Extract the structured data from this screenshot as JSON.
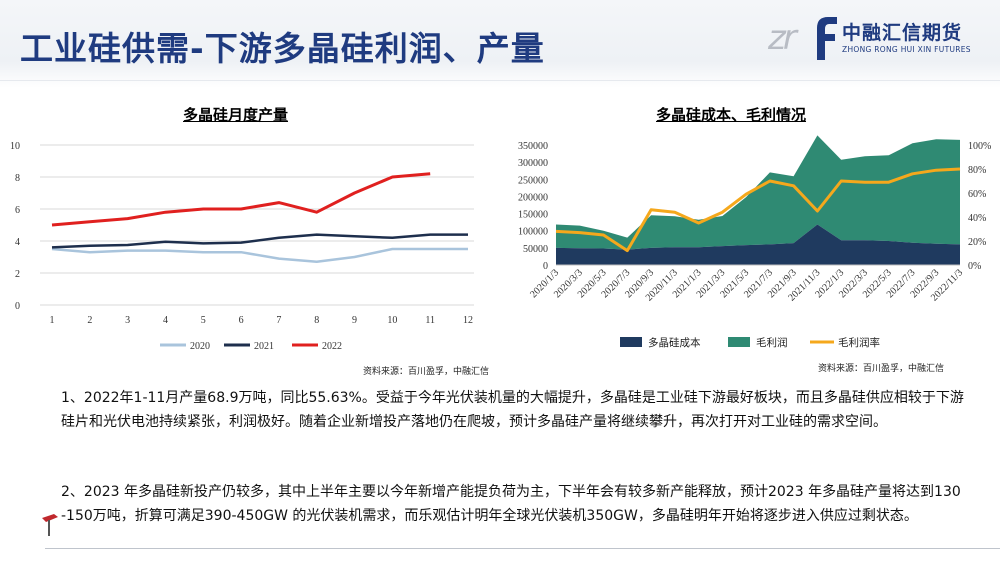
{
  "header": {
    "title": "工业硅供需-下游多晶硅利润、产量",
    "logo_cn": "中融汇信期货",
    "logo_en": "ZHONG RONG HUI XIN FUTURES",
    "logo_mark": "zr",
    "logo_f": "f"
  },
  "left_chart": {
    "source": "资料来源：百川盈孚，中融汇信"
  },
  "right_chart": {
    "source": "资料来源：百川盈孚，中融汇信"
  },
  "paragraphs": {
    "p1": "1、2022年1-11月产量68.9万吨，同比55.63%。受益于今年光伏装机量的大幅提升，多晶硅是工业硅下游最好板块，而且多晶硅供应相较于下游硅片和光伏电池持续紧张，利润极好。随着企业新增投产落地仍在爬坡，预计多晶硅产量将继续攀升，再次打开对工业硅的需求空间。",
    "p2": "2、2023 年多晶硅新投产仍较多，其中上半年主要以今年新增产能提负荷为主，下半年会有较多新产能释放，预计2023 年多晶硅产量将达到130 -150万吨，折算可满足390-450GW 的光伏装机需求，而乐观估计明年全球光伏装机350GW，多晶硅明年开始将逐步进入供应过剩状态。"
  },
  "chart_data": [
    {
      "type": "line",
      "title": "多晶硅月度产量",
      "categories": [
        "1",
        "2",
        "3",
        "4",
        "5",
        "6",
        "7",
        "8",
        "9",
        "10",
        "11",
        "12"
      ],
      "ylim": [
        0,
        10
      ],
      "yticks": [
        "0",
        "2",
        "4",
        "6",
        "8",
        "10"
      ],
      "grid": true,
      "legend": "bottom",
      "series": [
        {
          "name": "2020",
          "color": "#a9c4dc",
          "values": [
            3.5,
            3.3,
            3.4,
            3.4,
            3.3,
            3.3,
            2.9,
            2.7,
            3.0,
            3.5,
            3.5,
            3.5
          ]
        },
        {
          "name": "2021",
          "color": "#1e2f4d",
          "values": [
            3.6,
            3.7,
            3.75,
            3.95,
            3.85,
            3.9,
            4.2,
            4.4,
            4.3,
            4.2,
            4.4,
            4.4
          ]
        },
        {
          "name": "2022",
          "color": "#e0201f",
          "values": [
            5.0,
            5.2,
            5.4,
            5.8,
            6.0,
            6.0,
            6.4,
            5.8,
            7.0,
            8.0,
            8.2,
            null
          ]
        }
      ]
    },
    {
      "type": "area",
      "title": "多晶硅成本、毛利情况",
      "categories": [
        "2020/1/3",
        "2020/3/3",
        "2020/5/3",
        "2020/7/3",
        "2020/9/3",
        "2020/11/3",
        "2021/1/3",
        "2021/3/3",
        "2021/5/3",
        "2021/7/3",
        "2021/9/3",
        "2021/11/3",
        "2022/1/3",
        "2022/3/3",
        "2022/5/3",
        "2022/7/3",
        "2022/9/3",
        "2022/11/3"
      ],
      "ylim": [
        0,
        350000
      ],
      "yticks": [
        "0",
        "50000",
        "100000",
        "150000",
        "200000",
        "250000",
        "300000",
        "350000"
      ],
      "y2lim": [
        0,
        100
      ],
      "y2ticks": [
        "0%",
        "20%",
        "40%",
        "60%",
        "80%",
        "100%"
      ],
      "legend": "bottom",
      "series": [
        {
          "name": "多晶硅成本",
          "kind": "area",
          "color": "#1f3a5f",
          "values": [
            50000,
            49000,
            48000,
            45000,
            50000,
            52000,
            52000,
            55000,
            58000,
            60000,
            64000,
            118000,
            72000,
            72000,
            70000,
            65000,
            62000,
            60000
          ]
        },
        {
          "name": "毛利润",
          "kind": "area",
          "color": "#2f8a73",
          "values": [
            68000,
            66000,
            52000,
            35000,
            95000,
            90000,
            80000,
            88000,
            140000,
            210000,
            195000,
            260000,
            235000,
            245000,
            250000,
            290000,
            305000,
            305000
          ]
        },
        {
          "name": "毛利润率",
          "kind": "line",
          "axis": "right",
          "unit": "%",
          "color": "#f5a81c",
          "values": [
            28,
            27,
            25,
            12,
            46,
            44,
            35,
            44,
            59,
            70,
            66,
            45,
            70,
            69,
            69,
            76,
            79,
            80
          ]
        }
      ]
    }
  ]
}
